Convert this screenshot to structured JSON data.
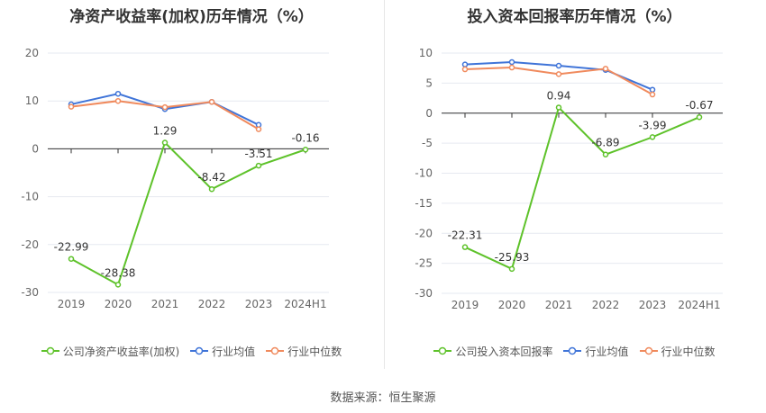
{
  "source_text": "数据来源：恒生聚源",
  "chart_data": [
    {
      "type": "line",
      "title": "净资产收益率(加权)历年情况（%）",
      "categories": [
        "2019",
        "2020",
        "2021",
        "2022",
        "2023",
        "2024H1"
      ],
      "ylim": [
        -30,
        20
      ],
      "yticks": [
        20,
        10,
        0,
        -10,
        -20,
        -30
      ],
      "grid": true,
      "legend_position": "bottom",
      "series": [
        {
          "name": "公司净资产收益率(加权)",
          "color": "#5ec22a",
          "values": [
            -22.99,
            -28.38,
            1.29,
            -8.42,
            -3.51,
            -0.16
          ],
          "labels": [
            "-22.99",
            "-28.38",
            "1.29",
            "-8.42",
            "-3.51",
            "-0.16"
          ]
        },
        {
          "name": "行业均值",
          "color": "#3f74d8",
          "values": [
            9.3,
            11.5,
            8.3,
            9.8,
            5.0,
            null
          ]
        },
        {
          "name": "行业中位数",
          "color": "#f08a5d",
          "values": [
            8.8,
            10.0,
            8.7,
            9.8,
            4.1,
            null
          ]
        }
      ]
    },
    {
      "type": "line",
      "title": "投入资本回报率历年情况（%）",
      "categories": [
        "2019",
        "2020",
        "2021",
        "2022",
        "2023",
        "2024H1"
      ],
      "ylim": [
        -30,
        10
      ],
      "yticks": [
        10,
        5,
        0,
        -5,
        -10,
        -15,
        -20,
        -25,
        -30
      ],
      "grid": true,
      "legend_position": "bottom",
      "series": [
        {
          "name": "公司投入资本回报率",
          "color": "#5ec22a",
          "values": [
            -22.31,
            -25.93,
            0.94,
            -6.89,
            -3.99,
            -0.67
          ],
          "labels": [
            "-22.31",
            "-25.93",
            "0.94",
            "-6.89",
            "-3.99",
            "-0.67"
          ]
        },
        {
          "name": "行业均值",
          "color": "#3f74d8",
          "values": [
            8.1,
            8.5,
            7.9,
            7.2,
            3.9,
            null
          ]
        },
        {
          "name": "行业中位数",
          "color": "#f08a5d",
          "values": [
            7.3,
            7.6,
            6.5,
            7.4,
            3.1,
            null
          ]
        }
      ]
    }
  ]
}
